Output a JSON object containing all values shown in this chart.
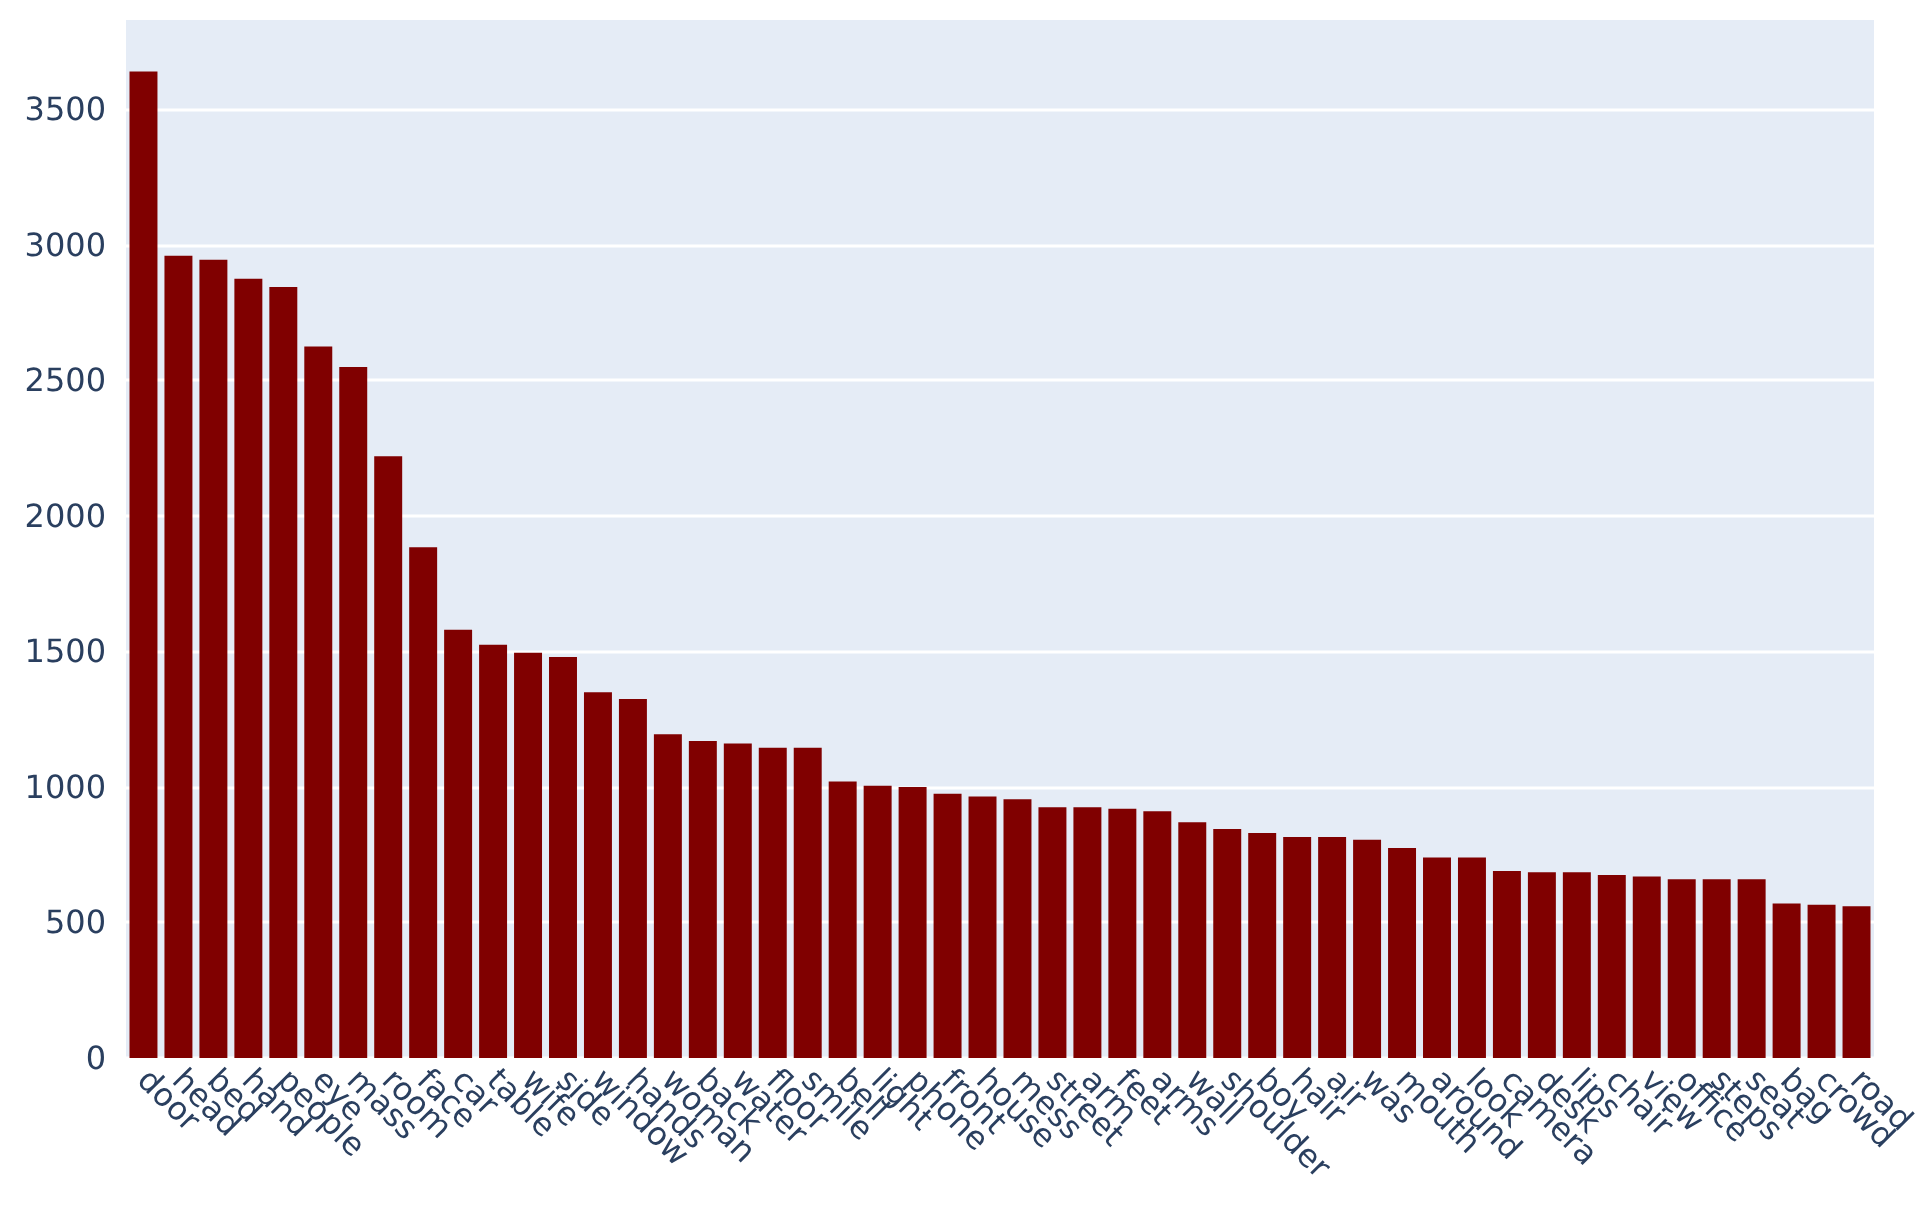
{
  "chart_data": {
    "type": "bar",
    "categories": [
      "door",
      "head",
      "bed",
      "hand",
      "people",
      "eye",
      "mass",
      "room",
      "face",
      "car",
      "table",
      "wife",
      "side",
      "window",
      "hands",
      "woman",
      "back",
      "water",
      "floor",
      "smile",
      "bell",
      "light",
      "phone",
      "front",
      "house",
      "mess",
      "street",
      "arm",
      "feet",
      "arms",
      "wall",
      "shoulder",
      "boy",
      "hair",
      "air",
      "was",
      "mouth",
      "around",
      "look",
      "camera",
      "desk",
      "lips",
      "chair",
      "view",
      "office",
      "steps",
      "seat",
      "bag",
      "crowd",
      "road"
    ],
    "values": [
      3640,
      2960,
      2945,
      2875,
      2845,
      2625,
      2550,
      2220,
      1885,
      1580,
      1525,
      1495,
      1480,
      1350,
      1325,
      1195,
      1170,
      1160,
      1145,
      1145,
      1020,
      1005,
      1000,
      975,
      965,
      955,
      925,
      925,
      920,
      910,
      870,
      845,
      830,
      815,
      815,
      805,
      775,
      740,
      740,
      690,
      685,
      685,
      675,
      670,
      660,
      660,
      660,
      570,
      565,
      560
    ],
    "color": "#800000",
    "ylim": [
      0,
      3830
    ],
    "yticks": [
      0,
      500,
      1000,
      1500,
      2000,
      2500,
      3000,
      3500
    ],
    "grid": "y"
  }
}
